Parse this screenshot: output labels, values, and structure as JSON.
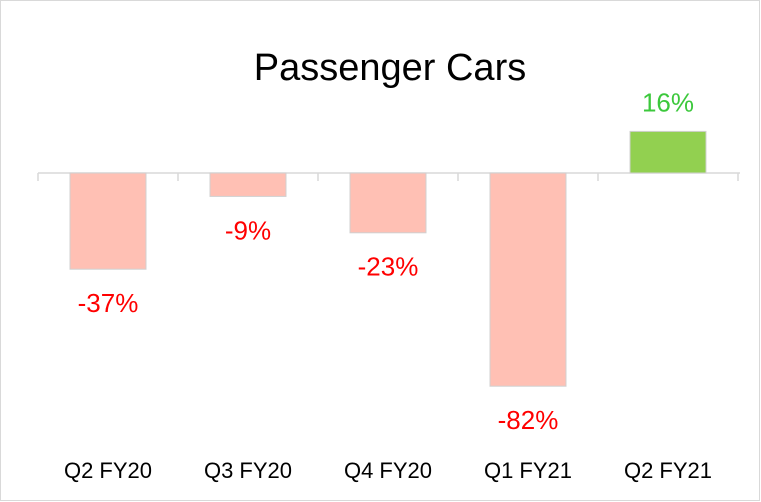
{
  "chart_data": {
    "type": "bar",
    "title": "Passenger Cars",
    "categories": [
      "Q2 FY20",
      "Q3 FY20",
      "Q4 FY20",
      "Q1 FY21",
      "Q2 FY21"
    ],
    "values": [
      -37,
      -9,
      -23,
      -82,
      16
    ],
    "value_labels": [
      "-37%",
      "-9%",
      "-23%",
      "-82%",
      "16%"
    ],
    "colors": [
      "#ffc0b4",
      "#ffc0b4",
      "#ffc0b4",
      "#ffc0b4",
      "#92d050"
    ],
    "label_colors": [
      "#ff0000",
      "#ff0000",
      "#ff0000",
      "#ff0000",
      "#3cc83c"
    ],
    "ylim": [
      -90,
      30
    ]
  }
}
